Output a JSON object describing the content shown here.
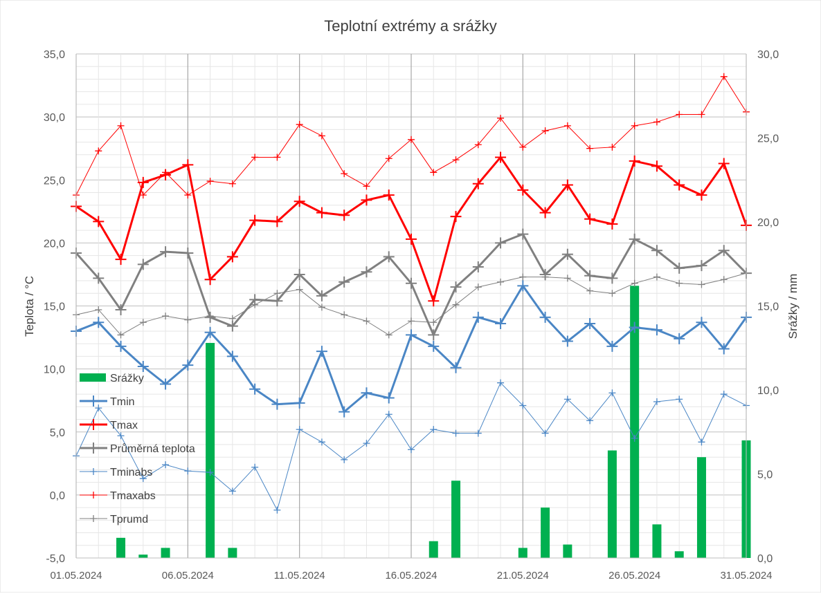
{
  "chart_data": {
    "type": "line",
    "title": "Teplotní extrémy a srážky",
    "ylabel_left": "Teplota / °C",
    "ylabel_right": "Srážky / mm",
    "ylim_left": [
      -5,
      35
    ],
    "ylim_right": [
      0,
      30
    ],
    "yticks_left": [
      "-5,0",
      "0,0",
      "5,0",
      "10,0",
      "15,0",
      "20,0",
      "25,0",
      "30,0",
      "35,0"
    ],
    "yticks_right": [
      "0,0",
      "5,0",
      "10,0",
      "15,0",
      "20,0",
      "25,0",
      "30,0"
    ],
    "x": [
      "01.05.2024",
      "02.05.2024",
      "03.05.2024",
      "04.05.2024",
      "05.05.2024",
      "06.05.2024",
      "07.05.2024",
      "08.05.2024",
      "09.05.2024",
      "10.05.2024",
      "11.05.2024",
      "12.05.2024",
      "13.05.2024",
      "14.05.2024",
      "15.05.2024",
      "16.05.2024",
      "17.05.2024",
      "18.05.2024",
      "19.05.2024",
      "20.05.2024",
      "21.05.2024",
      "22.05.2024",
      "23.05.2024",
      "24.05.2024",
      "25.05.2024",
      "26.05.2024",
      "27.05.2024",
      "28.05.2024",
      "29.05.2024",
      "30.05.2024",
      "31.05.2024"
    ],
    "x_tick_labels": [
      "01.05.2024",
      "06.05.2024",
      "11.05.2024",
      "16.05.2024",
      "21.05.2024",
      "26.05.2024",
      "31.05.2024"
    ],
    "grid": true,
    "legend_position": "left",
    "series": [
      {
        "name": "Srážky",
        "kind": "bar",
        "axis": "right",
        "color": "#00b050",
        "values": [
          0,
          0,
          1.2,
          0.2,
          0.6,
          0,
          12.8,
          0.6,
          0,
          0,
          0,
          0,
          0,
          0,
          0,
          0,
          1.0,
          4.6,
          0,
          0,
          0.6,
          3.0,
          0.8,
          0,
          6.4,
          16.2,
          2.0,
          0.4,
          6.0,
          0,
          7.0
        ]
      },
      {
        "name": "Tmin",
        "kind": "line",
        "axis": "left",
        "color": "#4a86c5",
        "width": 3,
        "values": [
          13.0,
          13.7,
          11.8,
          10.2,
          8.8,
          10.3,
          12.9,
          11.0,
          8.4,
          7.2,
          7.3,
          11.4,
          6.6,
          8.1,
          7.7,
          12.7,
          11.8,
          10.1,
          14.1,
          13.6,
          16.6,
          14.1,
          12.2,
          13.6,
          11.8,
          13.3,
          13.1,
          12.4,
          13.7,
          11.6,
          14.1
        ]
      },
      {
        "name": "Tmax",
        "kind": "line",
        "axis": "left",
        "color": "#ff0000",
        "width": 3,
        "values": [
          22.9,
          21.7,
          18.7,
          24.8,
          25.4,
          26.2,
          17.1,
          18.9,
          21.8,
          21.7,
          23.3,
          22.4,
          22.2,
          23.4,
          23.8,
          20.3,
          15.4,
          22.1,
          24.7,
          26.8,
          24.2,
          22.4,
          24.6,
          21.9,
          21.5,
          26.5,
          26.1,
          24.6,
          23.8,
          26.3,
          21.4
        ]
      },
      {
        "name": "Průměrná teplota",
        "kind": "line",
        "axis": "left",
        "color": "#808080",
        "width": 3,
        "values": [
          19.2,
          17.2,
          14.7,
          18.3,
          19.3,
          19.2,
          14.1,
          13.4,
          15.5,
          15.4,
          17.5,
          15.8,
          16.9,
          17.7,
          18.9,
          16.8,
          12.7,
          16.5,
          18.1,
          20.0,
          20.7,
          17.5,
          19.1,
          17.4,
          17.2,
          20.3,
          19.4,
          18.0,
          18.2,
          19.4,
          17.6
        ]
      },
      {
        "name": "Tminabs",
        "kind": "line",
        "axis": "left",
        "color": "#4a86c5",
        "width": 1,
        "values": [
          3.1,
          6.9,
          4.7,
          1.3,
          2.4,
          1.9,
          1.8,
          0.3,
          2.2,
          -1.2,
          5.2,
          4.2,
          2.8,
          4.1,
          6.4,
          3.6,
          5.2,
          4.9,
          4.9,
          8.9,
          7.1,
          4.9,
          7.6,
          5.9,
          8.1,
          4.5,
          7.4,
          7.6,
          4.2,
          8.0,
          7.1
        ]
      },
      {
        "name": "Tmaxabs",
        "kind": "line",
        "axis": "left",
        "color": "#ff0000",
        "width": 1,
        "values": [
          23.8,
          27.3,
          29.3,
          23.8,
          25.6,
          23.8,
          24.9,
          24.7,
          26.8,
          26.8,
          29.4,
          28.5,
          25.5,
          24.5,
          26.7,
          28.2,
          25.6,
          26.6,
          27.8,
          29.9,
          27.6,
          28.9,
          29.3,
          27.5,
          27.6,
          29.3,
          29.6,
          30.2,
          30.2,
          33.2,
          30.4
        ]
      },
      {
        "name": "Tprumd",
        "kind": "line",
        "axis": "left",
        "color": "#808080",
        "width": 1,
        "values": [
          14.3,
          14.7,
          12.7,
          13.7,
          14.2,
          13.9,
          14.2,
          14.0,
          15.1,
          16.0,
          16.3,
          14.9,
          14.3,
          13.8,
          12.7,
          13.8,
          13.7,
          15.1,
          16.5,
          16.9,
          17.3,
          17.3,
          17.2,
          16.2,
          16.0,
          16.8,
          17.3,
          16.8,
          16.7,
          17.1,
          17.6
        ]
      }
    ]
  }
}
